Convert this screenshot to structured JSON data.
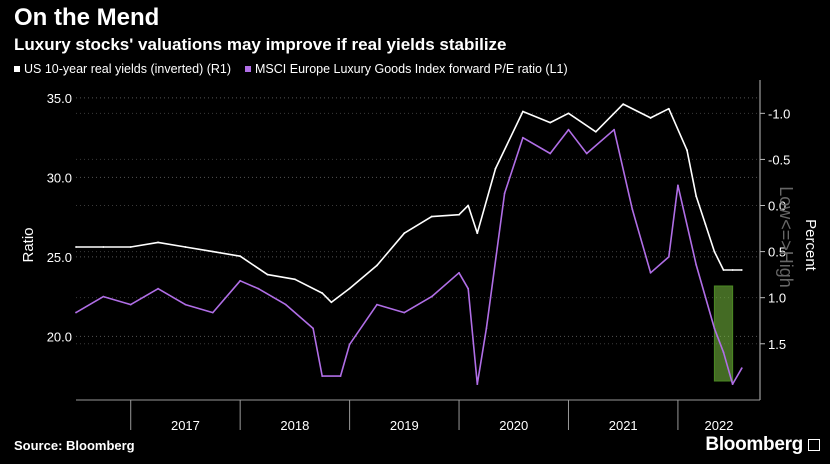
{
  "header": {
    "title": "On the Mend",
    "subtitle": "Luxury stocks' valuations may improve if real yields stabilize"
  },
  "legend": [
    {
      "label": "US 10-year real yields (inverted) (R1)",
      "color": "#ffffff"
    },
    {
      "label": "MSCI Europe Luxury Goods Index forward P/E ratio (L1)",
      "color": "#b06ee6"
    }
  ],
  "footer": {
    "source": "Source: Bloomberg",
    "brand": "Bloomberg"
  },
  "colors": {
    "background": "#000000",
    "yields_line": "#ffffff",
    "pe_line": "#b06ee6",
    "highlight_box": "#7cc242",
    "grid": "#555555"
  },
  "chart_data": {
    "type": "line",
    "title": "On the Mend",
    "subtitle": "Luxury stocks' valuations may improve if real yields stabilize",
    "xlabel": "",
    "ylabel_left": "Ratio",
    "ylabel_right": "Percent",
    "right_axis_annotation": "Low<=>High",
    "x_range": [
      "2016-07",
      "2022-10"
    ],
    "x_tick_labels": [
      "2017",
      "2018",
      "2019",
      "2020",
      "2021",
      "2022"
    ],
    "ylim_left": [
      16.0,
      36.0
    ],
    "y_ticks_left": [
      "35.0",
      "30.0",
      "25.0",
      "20.0"
    ],
    "ylim_right": [
      2.11,
      -1.34
    ],
    "y_ticks_right": [
      "-1.0",
      "-0.5",
      "0.0",
      "0.5",
      "1.0",
      "1.5"
    ],
    "right_axis_inverted": true,
    "grid": "horizontal dotted",
    "highlight": {
      "x_range": [
        "2022-05",
        "2022-07"
      ],
      "color": "#7cc242"
    },
    "series": [
      {
        "name": "US 10-year real yields (inverted) (R1)",
        "axis": "right",
        "x": [
          "2016-07",
          "2016-10",
          "2017-01",
          "2017-04",
          "2017-07",
          "2017-10",
          "2018-01",
          "2018-04",
          "2018-07",
          "2018-10",
          "2018-11",
          "2019-01",
          "2019-04",
          "2019-07",
          "2019-10",
          "2020-01",
          "2020-02",
          "2020-03",
          "2020-05",
          "2020-08",
          "2020-11",
          "2021-01",
          "2021-04",
          "2021-07",
          "2021-10",
          "2021-12",
          "2022-02",
          "2022-03",
          "2022-04",
          "2022-05",
          "2022-06",
          "2022-07",
          "2022-08"
        ],
        "values": [
          0.45,
          0.45,
          0.45,
          0.4,
          0.45,
          0.5,
          0.55,
          0.75,
          0.8,
          0.95,
          1.05,
          0.9,
          0.65,
          0.3,
          0.12,
          0.1,
          0.0,
          0.3,
          -0.4,
          -1.02,
          -0.9,
          -1.0,
          -0.8,
          -1.1,
          -0.95,
          -1.05,
          -0.6,
          -0.1,
          0.2,
          0.5,
          0.7,
          0.7,
          0.7
        ]
      },
      {
        "name": "MSCI Europe Luxury Goods Index forward P/E ratio (L1)",
        "axis": "left",
        "x": [
          "2016-07",
          "2016-10",
          "2017-01",
          "2017-04",
          "2017-07",
          "2017-10",
          "2018-01",
          "2018-03",
          "2018-06",
          "2018-09",
          "2018-10",
          "2018-12",
          "2019-01",
          "2019-04",
          "2019-07",
          "2019-10",
          "2020-01",
          "2020-02",
          "2020-03",
          "2020-04",
          "2020-06",
          "2020-08",
          "2020-11",
          "2021-01",
          "2021-03",
          "2021-06",
          "2021-08",
          "2021-10",
          "2021-12",
          "2022-01",
          "2022-03",
          "2022-05",
          "2022-06",
          "2022-07",
          "2022-08"
        ],
        "values": [
          21.5,
          22.5,
          22.0,
          23.0,
          22.0,
          21.5,
          23.5,
          23.0,
          22.0,
          20.5,
          17.5,
          17.5,
          19.5,
          22.0,
          21.5,
          22.5,
          24.0,
          23.0,
          17.0,
          20.5,
          29.0,
          32.5,
          31.5,
          33.0,
          31.5,
          33.0,
          28.0,
          24.0,
          25.0,
          29.5,
          24.5,
          20.5,
          19.0,
          17.0,
          18.0
        ]
      }
    ]
  }
}
